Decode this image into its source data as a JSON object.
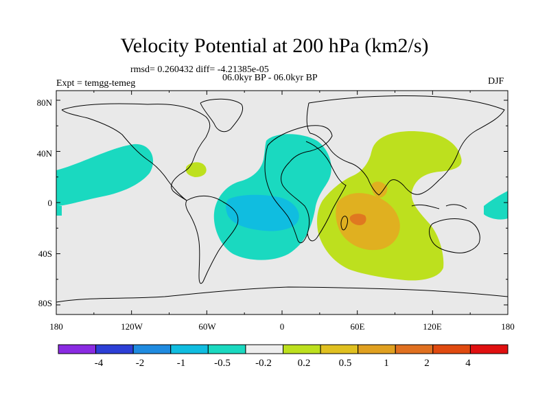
{
  "title": "Velocity Potential at 200 hPa (km2/s)",
  "stats": "rmsd= 0.260432 diff= -4.21385e-05",
  "period": "06.0kyr BP - 06.0kyr BP",
  "expt": "Expt = temgg-temeg",
  "season": "DJF",
  "lat_ticks": [
    "80N",
    "40N",
    "0",
    "40S",
    "80S"
  ],
  "lon_ticks": [
    "180",
    "120W",
    "60W",
    "0",
    "60E",
    "120E",
    "180"
  ],
  "colorbar": {
    "colors": [
      "#8a2be2",
      "#2d3fd6",
      "#1f8be0",
      "#10bde0",
      "#1ad9c0",
      "#eeeeee",
      "#bde01e",
      "#e0c020",
      "#e0a020",
      "#e07020",
      "#e04a10",
      "#e01010"
    ],
    "labels": [
      "-4",
      "-2",
      "-1",
      "-0.5",
      "-0.2",
      "0.2",
      "0.5",
      "1",
      "2",
      "4"
    ]
  },
  "map_colors": {
    "background": "#e9e9e9",
    "neg_light": "#1ad9c0",
    "neg_mid": "#10bde0",
    "pos_light": "#bde01e",
    "pos_mid": "#e0b020",
    "pos_strong": "#e07820"
  }
}
